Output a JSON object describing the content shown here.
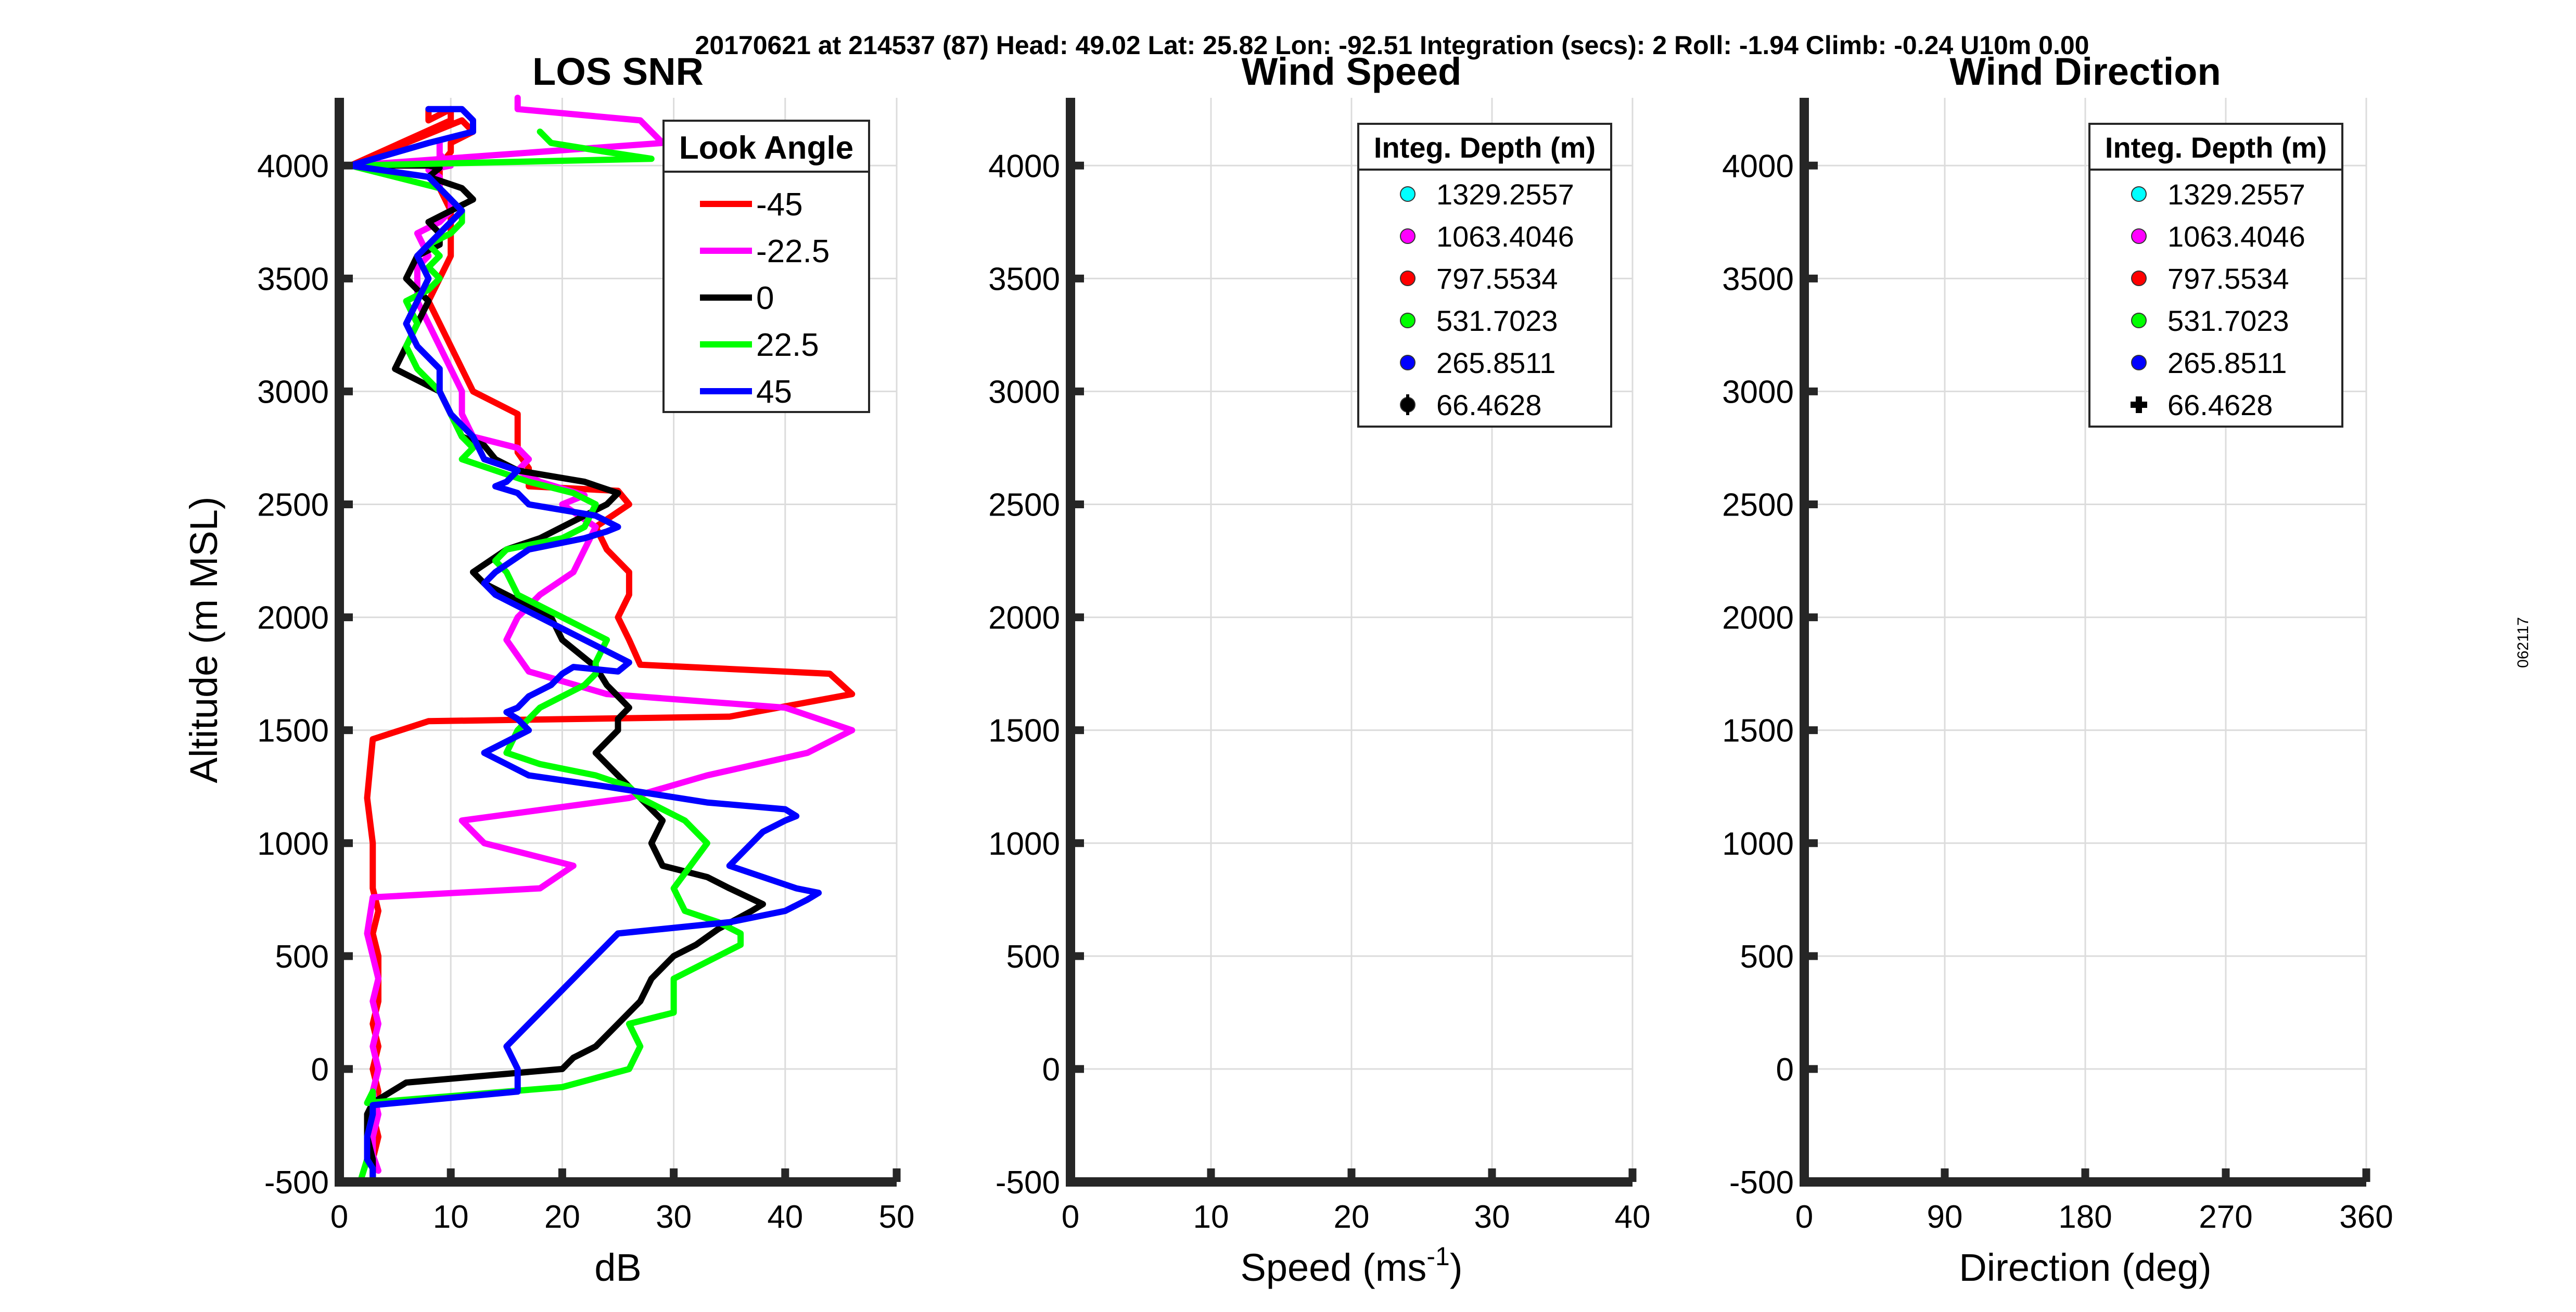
{
  "header": "20170621 at 214537 (87)  Head: 49.02  Lat: 25.82  Lon: -92.51  Integration (secs): 2  Roll: -1.94  Climb: -0.24  U10m 0.00",
  "side_code": "062117",
  "chart_data": [
    {
      "type": "line",
      "title": "LOS SNR",
      "xlabel": "dB",
      "ylabel": "Altitude (m MSL)",
      "xlim": [
        0,
        50
      ],
      "ylim": [
        -500,
        4300
      ],
      "xticks": [
        0,
        10,
        20,
        30,
        40,
        50
      ],
      "yticks": [
        -500,
        0,
        500,
        1000,
        1500,
        2000,
        2500,
        3000,
        3500,
        4000
      ],
      "grid": true,
      "legend": {
        "title": "Look Angle",
        "position": "top-right"
      },
      "series": [
        {
          "name": "-45",
          "color": "#ff0000",
          "x": [
            3,
            3,
            3.5,
            3,
            3.5,
            3,
            3.5,
            3,
            3.5,
            3.5,
            3.5,
            3,
            3.5,
            3,
            3,
            2.5,
            3,
            8,
            35,
            46,
            44,
            27,
            26,
            25,
            26,
            26,
            24,
            23,
            26,
            25,
            17,
            17,
            16,
            16,
            16,
            12,
            11,
            10,
            9,
            8,
            9,
            10,
            10,
            10,
            9,
            9,
            9,
            10,
            10,
            12,
            11,
            1,
            10,
            10,
            8,
            8
          ],
          "y": [
            -480,
            -400,
            -300,
            -200,
            -100,
            0,
            100,
            200,
            300,
            400,
            500,
            600,
            700,
            800,
            1000,
            1200,
            1460,
            1540,
            1560,
            1660,
            1750,
            1790,
            1900,
            2000,
            2100,
            2200,
            2300,
            2400,
            2500,
            2560,
            2580,
            2660,
            2730,
            2800,
            2900,
            3000,
            3100,
            3200,
            3300,
            3400,
            3500,
            3600,
            3700,
            3800,
            3900,
            3950,
            4000,
            4060,
            4100,
            4150,
            4200,
            4000,
            4200,
            4250,
            4200,
            4250
          ]
        },
        {
          "name": "-22.5",
          "color": "#ff00ff",
          "x": [
            3.5,
            3,
            3,
            3.5,
            3,
            3.5,
            3,
            3.5,
            3,
            3.5,
            3,
            2.5,
            3,
            18,
            21,
            13,
            11,
            26,
            33,
            42,
            46,
            40,
            24,
            17,
            15,
            16,
            18,
            21,
            22,
            23,
            20,
            22,
            18,
            16,
            17,
            16,
            12,
            11,
            11,
            10,
            9,
            8,
            7,
            7,
            7,
            8,
            7,
            9,
            10,
            10,
            9,
            9,
            8,
            10,
            9,
            9,
            9,
            8,
            1,
            29,
            27,
            16,
            16
          ],
          "y": [
            -450,
            -380,
            -300,
            -200,
            -100,
            0,
            100,
            200,
            300,
            400,
            500,
            600,
            760,
            800,
            900,
            1000,
            1100,
            1200,
            1300,
            1400,
            1500,
            1600,
            1660,
            1760,
            1900,
            2000,
            2100,
            2200,
            2300,
            2400,
            2500,
            2540,
            2600,
            2650,
            2700,
            2750,
            2800,
            2900,
            3000,
            3100,
            3200,
            3300,
            3400,
            3500,
            3550,
            3600,
            3700,
            3750,
            3800,
            3850,
            3900,
            3950,
            3980,
            4000,
            4050,
            4100,
            4000,
            4000,
            4000,
            4100,
            4200,
            4250,
            4300
          ]
        },
        {
          "name": "0",
          "color": "#000000",
          "x": [
            3,
            3,
            3,
            2.5,
            2.5,
            3,
            6,
            20,
            21,
            23,
            25,
            27,
            28,
            30,
            32,
            34,
            37,
            38,
            35,
            33,
            29,
            28,
            29,
            27,
            26,
            25,
            24,
            23,
            24,
            25,
            25,
            26,
            25,
            24,
            23,
            20,
            19,
            15,
            13,
            12,
            15,
            18,
            20,
            22,
            24,
            25,
            22,
            16,
            14,
            13,
            11,
            10,
            9,
            7,
            5,
            6,
            7,
            8,
            6,
            7,
            9,
            9,
            8,
            10,
            12,
            11,
            8,
            9,
            8,
            1
          ],
          "y": [
            -490,
            -450,
            -400,
            -300,
            -200,
            -150,
            -60,
            0,
            50,
            100,
            200,
            300,
            400,
            500,
            550,
            620,
            700,
            730,
            800,
            850,
            900,
            1000,
            1100,
            1200,
            1250,
            1300,
            1350,
            1400,
            1450,
            1500,
            1550,
            1600,
            1650,
            1700,
            1780,
            1900,
            2000,
            2100,
            2150,
            2200,
            2300,
            2350,
            2400,
            2450,
            2500,
            2550,
            2600,
            2650,
            2700,
            2760,
            2800,
            2900,
            3000,
            3050,
            3100,
            3200,
            3300,
            3400,
            3500,
            3600,
            3650,
            3700,
            3750,
            3800,
            3850,
            3900,
            3950,
            3990,
            4000,
            4000
          ]
        },
        {
          "name": "22.5",
          "color": "#00ff00",
          "x": [
            2,
            2.5,
            2.5,
            3,
            3,
            2.5,
            20,
            26,
            27,
            26,
            30,
            30,
            30,
            34,
            36,
            36,
            34,
            31,
            30,
            33,
            31,
            29,
            27,
            26,
            23,
            18,
            15,
            16,
            18,
            20,
            22,
            23,
            23,
            24,
            20,
            18,
            16,
            15,
            14,
            15,
            20,
            22,
            23,
            21,
            17,
            14,
            11,
            12,
            11,
            10,
            9,
            7,
            6,
            7,
            6,
            8,
            9,
            8,
            9,
            8,
            10,
            11,
            11,
            10,
            9,
            1,
            28,
            24,
            19,
            18
          ],
          "y": [
            -480,
            -400,
            -300,
            -200,
            -100,
            -150,
            -80,
            0,
            100,
            200,
            250,
            300,
            400,
            500,
            550,
            600,
            650,
            700,
            800,
            1000,
            1100,
            1150,
            1200,
            1250,
            1300,
            1350,
            1400,
            1500,
            1600,
            1650,
            1700,
            1750,
            1800,
            1900,
            2000,
            2050,
            2100,
            2200,
            2250,
            2300,
            2350,
            2400,
            2500,
            2550,
            2600,
            2650,
            2700,
            2750,
            2800,
            2900,
            3000,
            3100,
            3200,
            3300,
            3400,
            3450,
            3500,
            3550,
            3600,
            3650,
            3700,
            3750,
            3800,
            3850,
            3900,
            4000,
            4030,
            4060,
            4100,
            4150
          ]
        },
        {
          "name": "45",
          "color": "#0000ff",
          "x": [
            3,
            3,
            2.5,
            2.5,
            3,
            3,
            16,
            16,
            15,
            16,
            17,
            18,
            19,
            20,
            21,
            22,
            23,
            25,
            35,
            40,
            42,
            43,
            41,
            38,
            35,
            36,
            37,
            38,
            40,
            41,
            40,
            33,
            24,
            17,
            15,
            13,
            15,
            17,
            16,
            15,
            16,
            17,
            19,
            20,
            21,
            25,
            26,
            24,
            22,
            18,
            16,
            14,
            13,
            14,
            17,
            22,
            24,
            25,
            23,
            17,
            16,
            14,
            15,
            16,
            13,
            12,
            10,
            9,
            9,
            7,
            6,
            7,
            8,
            7,
            9,
            11,
            10,
            9,
            8,
            1,
            8,
            12,
            12,
            11,
            8
          ],
          "y": [
            -480,
            -440,
            -400,
            -300,
            -200,
            -160,
            -100,
            0,
            100,
            150,
            200,
            250,
            300,
            350,
            400,
            450,
            500,
            600,
            650,
            700,
            750,
            780,
            800,
            850,
            900,
            950,
            1000,
            1050,
            1100,
            1120,
            1150,
            1180,
            1250,
            1300,
            1350,
            1400,
            1450,
            1500,
            1550,
            1580,
            1600,
            1650,
            1700,
            1750,
            1780,
            1760,
            1800,
            1850,
            1900,
            2000,
            2050,
            2100,
            2150,
            2200,
            2300,
            2350,
            2380,
            2400,
            2450,
            2500,
            2550,
            2580,
            2600,
            2650,
            2700,
            2800,
            2900,
            3000,
            3100,
            3200,
            3300,
            3400,
            3500,
            3600,
            3700,
            3800,
            3850,
            3900,
            3950,
            4000,
            4100,
            4150,
            4200,
            4250,
            4250
          ]
        }
      ]
    },
    {
      "type": "scatter",
      "title": "Wind Speed",
      "xlabel": "Speed (ms",
      "xlabel_exp": "-1",
      "xlabel_tail": ")",
      "xlim": [
        0,
        40
      ],
      "ylim": [
        -500,
        4300
      ],
      "xticks": [
        0,
        10,
        20,
        30,
        40
      ],
      "yticks": [
        -500,
        0,
        500,
        1000,
        1500,
        2000,
        2500,
        3000,
        3500,
        4000
      ],
      "grid": true,
      "legend": {
        "title": "Integ. Depth (m)",
        "position": "top-right"
      },
      "series": [
        {
          "name": "1329.2557",
          "color": "#00ffff",
          "marker": "circle",
          "x": [],
          "y": []
        },
        {
          "name": "1063.4046",
          "color": "#ff00ff",
          "marker": "circle",
          "x": [],
          "y": []
        },
        {
          "name": "797.5534",
          "color": "#ff0000",
          "marker": "circle",
          "x": [],
          "y": []
        },
        {
          "name": "531.7023",
          "color": "#00ff00",
          "marker": "circle",
          "x": [],
          "y": []
        },
        {
          "name": "265.8511",
          "color": "#0000ff",
          "marker": "circle",
          "x": [],
          "y": []
        },
        {
          "name": "66.4628",
          "color": "#000000",
          "marker": "circle-bar",
          "x": [],
          "y": []
        }
      ]
    },
    {
      "type": "scatter",
      "title": "Wind Direction",
      "xlabel": "Direction (deg)",
      "xlim": [
        0,
        360
      ],
      "ylim": [
        -500,
        4300
      ],
      "xticks": [
        0,
        90,
        180,
        270,
        360
      ],
      "yticks": [
        -500,
        0,
        500,
        1000,
        1500,
        2000,
        2500,
        3000,
        3500,
        4000
      ],
      "grid": true,
      "legend": {
        "title": "Integ. Depth (m)",
        "position": "top-right"
      },
      "series": [
        {
          "name": "1329.2557",
          "color": "#00ffff",
          "marker": "circle",
          "x": [],
          "y": []
        },
        {
          "name": "1063.4046",
          "color": "#ff00ff",
          "marker": "circle",
          "x": [],
          "y": []
        },
        {
          "name": "797.5534",
          "color": "#ff0000",
          "marker": "circle",
          "x": [],
          "y": []
        },
        {
          "name": "531.7023",
          "color": "#00ff00",
          "marker": "circle",
          "x": [],
          "y": []
        },
        {
          "name": "265.8511",
          "color": "#0000ff",
          "marker": "circle",
          "x": [],
          "y": []
        },
        {
          "name": "66.4628",
          "color": "#000000",
          "marker": "plus",
          "x": [],
          "y": []
        }
      ]
    }
  ]
}
